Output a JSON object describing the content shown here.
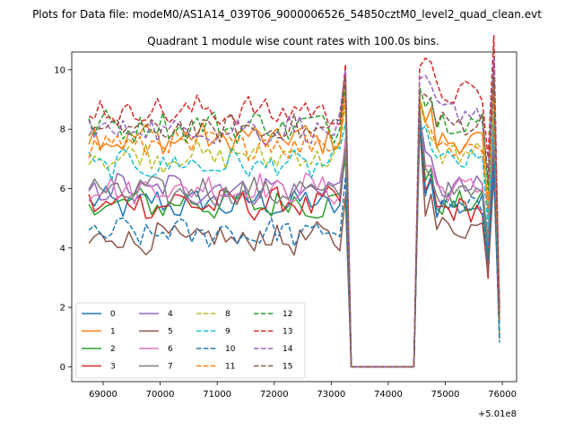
{
  "chart_data": {
    "type": "line",
    "suptitle": "Plots for Data file: modeM0/AS1A14_039T06_9000006526_54850cztM0_level2_quad_clean.evt",
    "title": "Quadrant 1 module wise count rates with 100.0s bins.",
    "xlabel": "",
    "ylabel": "",
    "x_offset_label": "+5.01e8",
    "xlim": [
      68450,
      76250
    ],
    "ylim": [
      -0.5,
      10.6
    ],
    "x_ticks": [
      69000,
      70000,
      71000,
      72000,
      73000,
      74000,
      75000,
      76000
    ],
    "x_tick_labels": [
      "69000",
      "70000",
      "71000",
      "72000",
      "73000",
      "74000",
      "75000",
      "76000"
    ],
    "y_ticks": [
      0,
      2,
      4,
      6,
      8,
      10
    ],
    "y_tick_labels": [
      "0",
      "2",
      "4",
      "6",
      "8",
      "10"
    ],
    "grid": false,
    "legend_placement": "lower-left",
    "legend_columns": 4,
    "segments": [
      {
        "start": 68750,
        "end": 73250,
        "step": 100
      },
      {
        "start": 74550,
        "end": 75950,
        "step": 100
      }
    ],
    "gap": {
      "x": [
        73350,
        73450,
        74450
      ],
      "y": 0
    },
    "series": [
      {
        "name": "0",
        "color": "#1f77b4",
        "dash": "solid",
        "mean": 5.5,
        "seg2_mean": 5.4,
        "peak": 8.7
      },
      {
        "name": "1",
        "color": "#ff7f0e",
        "dash": "solid",
        "mean": 7.7,
        "seg2_mean": 7.6,
        "peak": 9.0
      },
      {
        "name": "2",
        "color": "#2ca02c",
        "dash": "solid",
        "mean": 5.5,
        "seg2_mean": 5.5,
        "peak": 8.8
      },
      {
        "name": "3",
        "color": "#d62728",
        "dash": "solid",
        "mean": 5.5,
        "seg2_mean": 5.3,
        "peak": 8.6
      },
      {
        "name": "4",
        "color": "#9467bd",
        "dash": "solid",
        "mean": 6.0,
        "seg2_mean": 6.0,
        "peak": 8.4
      },
      {
        "name": "5",
        "color": "#8c564b",
        "dash": "solid",
        "mean": 4.3,
        "seg2_mean": 4.7,
        "peak": 8.2
      },
      {
        "name": "6",
        "color": "#e377c2",
        "dash": "solid",
        "mean": 6.0,
        "seg2_mean": 6.0,
        "peak": 8.5
      },
      {
        "name": "7",
        "color": "#7f7f7f",
        "dash": "solid",
        "mean": 5.9,
        "seg2_mean": 5.8,
        "peak": 8.5
      },
      {
        "name": "8",
        "color": "#bcbd22",
        "dash": "dashed",
        "mean": 7.1,
        "seg2_mean": 7.2,
        "peak": 9.1
      },
      {
        "name": "9",
        "color": "#17becf",
        "dash": "dashed",
        "mean": 6.8,
        "seg2_mean": 6.9,
        "peak": 7.9
      },
      {
        "name": "10",
        "color": "#1f77b4",
        "dash": "dashed",
        "mean": 4.5,
        "seg2_mean": 5.3,
        "peak": 8.3
      },
      {
        "name": "11",
        "color": "#ff7f0e",
        "dash": "dashed",
        "mean": 7.5,
        "seg2_mean": 7.4,
        "peak": 8.9
      },
      {
        "name": "12",
        "color": "#2ca02c",
        "dash": "dashed",
        "mean": 8.1,
        "seg2_mean": 8.3,
        "peak": 9.4
      },
      {
        "name": "13",
        "color": "#d62728",
        "dash": "dashed",
        "mean": 8.6,
        "seg2_mean": 9.2,
        "peak": 10.1
      },
      {
        "name": "14",
        "color": "#9467bd",
        "dash": "dashed",
        "mean": 8.0,
        "seg2_mean": 8.6,
        "peak": 9.7
      },
      {
        "name": "15",
        "color": "#8c564b",
        "dash": "dashed",
        "mean": 8.0,
        "seg2_mean": 8.2,
        "peak": 9.2
      }
    ]
  }
}
